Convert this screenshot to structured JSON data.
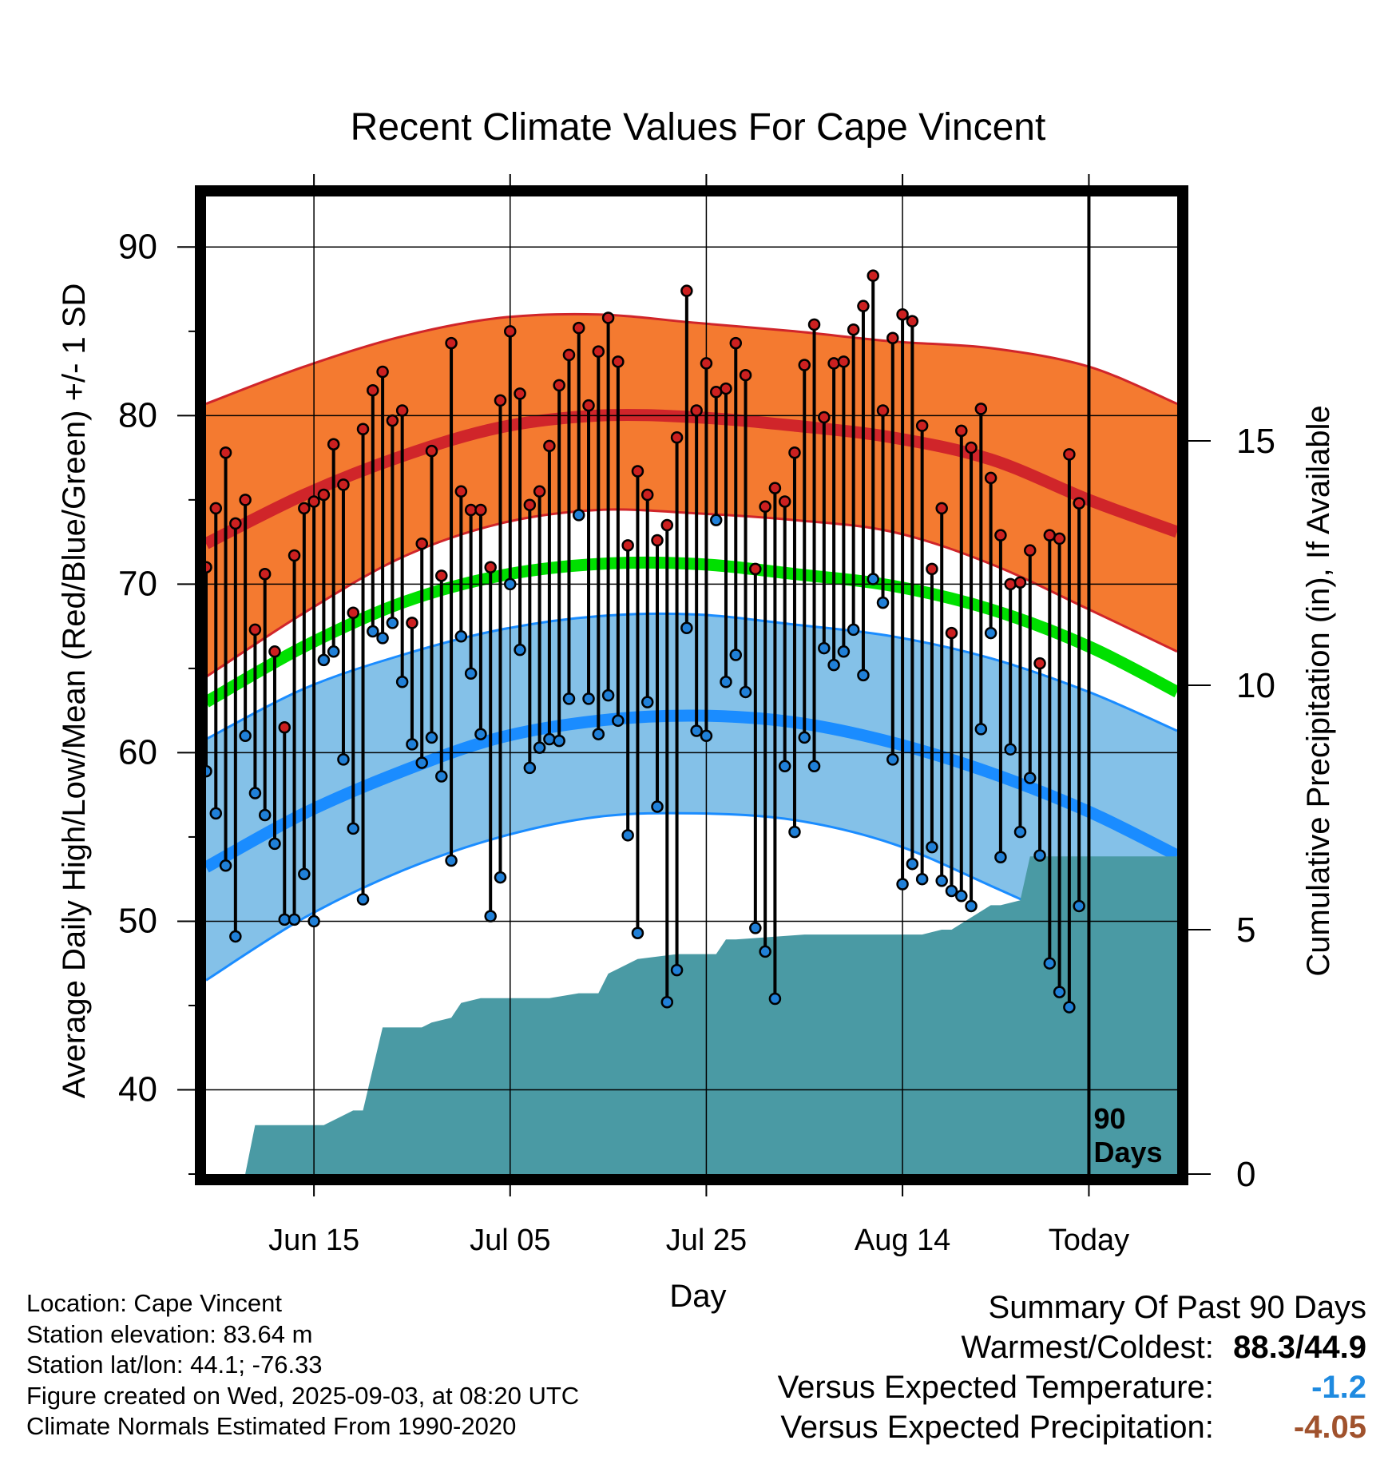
{
  "chart_data": {
    "type": "line",
    "title": "Recent Climate Values For Cape Vincent",
    "xlabel": "Day",
    "ylabel": "Average Daily High/Low/Mean (Red/Blue/Green) +/- 1 SD",
    "y2label": "Cumulative Precipitation (in), If Available",
    "ylim": [
      35,
      93
    ],
    "y_ticks": [
      40,
      50,
      60,
      70,
      80,
      90
    ],
    "y2lim": [
      0,
      20
    ],
    "y2_ticks": [
      0,
      5,
      10,
      15
    ],
    "x_range_days": [
      -90,
      9
    ],
    "x_ticks": [
      {
        "day": -79,
        "label": "Jun 15"
      },
      {
        "day": -59,
        "label": "Jul 05"
      },
      {
        "day": -39,
        "label": "Jul 25"
      },
      {
        "day": -19,
        "label": "Aug 14"
      },
      {
        "day": 0,
        "label": "Today"
      }
    ],
    "today_marker_label": [
      "90",
      "Days"
    ],
    "grid": true,
    "colors": {
      "high_sd_band": "#f47a30",
      "high_normal": "#d0252a",
      "low_sd_band": "#84c1e8",
      "low_normal": "#1a8cff",
      "mean_normal": "#00e000",
      "observed_high_marker": "#cc2020",
      "observed_low_marker": "#2080d8",
      "precip": "#4a9aa4"
    },
    "normal_days": [
      -90,
      -80,
      -70,
      -60,
      -50,
      -40,
      -30,
      -20,
      -10,
      0,
      9
    ],
    "normal_high": [
      72.4,
      75.3,
      77.6,
      79.3,
      80.0,
      79.9,
      79.4,
      78.7,
      77.4,
      75.0,
      73.1
    ],
    "normal_high_plus_sd": [
      80.7,
      82.9,
      84.7,
      85.8,
      86.0,
      85.5,
      85.0,
      84.4,
      84.0,
      82.9,
      80.7
    ],
    "normal_high_minus_sd": [
      64.5,
      68.3,
      71.6,
      73.6,
      74.4,
      74.2,
      73.8,
      73.1,
      71.2,
      68.5,
      66.0
    ],
    "normal_mean": [
      63.0,
      66.3,
      68.9,
      70.5,
      71.2,
      71.2,
      70.6,
      69.9,
      68.5,
      66.3,
      63.6
    ],
    "normal_low": [
      53.2,
      56.4,
      58.9,
      60.9,
      61.9,
      62.2,
      61.8,
      60.6,
      58.8,
      56.5,
      53.9
    ],
    "normal_low_plus_sd": [
      60.8,
      63.8,
      65.8,
      67.3,
      68.1,
      68.2,
      67.6,
      66.9,
      65.6,
      63.6,
      61.3
    ],
    "normal_low_minus_sd": [
      46.5,
      50.2,
      53.0,
      55.0,
      56.2,
      56.4,
      56.0,
      54.6,
      52.1,
      49.4,
      46.5
    ],
    "observed_high": [
      71.0,
      74.5,
      77.8,
      73.6,
      75.0,
      67.3,
      70.6,
      66.0,
      61.5,
      71.7,
      74.5,
      74.9,
      75.3,
      78.3,
      75.9,
      68.3,
      79.2,
      81.5,
      82.6,
      79.7,
      80.3,
      67.7,
      72.4,
      77.9,
      70.5,
      84.3,
      75.5,
      74.4,
      74.4,
      71.0,
      80.9,
      85.0,
      81.3,
      74.7,
      75.5,
      78.2,
      81.8,
      83.6,
      85.2,
      80.6,
      83.8,
      85.8,
      83.2,
      72.3,
      76.7,
      75.3,
      72.6,
      73.5,
      78.7,
      87.4,
      80.3,
      83.1,
      81.4,
      81.6,
      84.3,
      82.4,
      70.9,
      74.6,
      75.7,
      74.9,
      77.8,
      83.0,
      85.4,
      79.9,
      83.1,
      83.2,
      85.1,
      86.5,
      88.3,
      80.3,
      84.6,
      86.0,
      85.6,
      79.4,
      70.9,
      74.5,
      67.1,
      79.1,
      78.1,
      80.4,
      76.3,
      72.9,
      70.0,
      70.1,
      72.0,
      65.3,
      72.9,
      72.7,
      77.7,
      74.8
    ],
    "observed_low": [
      58.9,
      56.4,
      53.3,
      49.1,
      61.0,
      57.6,
      56.3,
      54.6,
      50.1,
      50.1,
      52.8,
      50.0,
      65.5,
      66.0,
      59.6,
      55.5,
      51.3,
      67.2,
      66.8,
      67.7,
      64.2,
      60.5,
      59.4,
      60.9,
      58.6,
      53.6,
      66.9,
      64.7,
      61.1,
      50.3,
      52.6,
      70.0,
      66.1,
      59.1,
      60.3,
      60.8,
      60.7,
      63.2,
      74.1,
      63.2,
      61.1,
      63.4,
      61.9,
      55.1,
      49.3,
      63.0,
      56.8,
      45.2,
      47.1,
      67.4,
      61.3,
      61.0,
      73.8,
      64.2,
      65.8,
      63.6,
      49.6,
      48.2,
      45.4,
      59.2,
      55.3,
      60.9,
      59.2,
      66.2,
      65.2,
      66.0,
      67.3,
      64.6,
      70.3,
      68.9,
      59.6,
      52.2,
      53.4,
      52.5,
      54.4,
      52.4,
      51.8,
      51.5,
      50.9,
      61.4,
      67.1,
      53.8,
      60.2,
      55.3,
      58.5,
      53.9,
      47.5,
      45.8,
      44.9,
      50.9
    ],
    "cum_precip": {
      "days": [
        -90,
        -86,
        -85,
        -78,
        -75,
        -74,
        -72,
        -71,
        -68,
        -67,
        -65,
        -64,
        -62,
        -61,
        -58,
        -55,
        -52,
        -50,
        -49,
        -48,
        -46,
        -42,
        -38,
        -37,
        -36,
        -29,
        -28,
        -20,
        -17,
        -15,
        -14,
        -10,
        -9,
        -7,
        -6,
        0,
        9
      ],
      "values": [
        0,
        0,
        1.0,
        1.0,
        1.3,
        1.3,
        3.0,
        3.0,
        3.0,
        3.1,
        3.2,
        3.5,
        3.6,
        3.6,
        3.6,
        3.6,
        3.7,
        3.7,
        4.1,
        4.2,
        4.4,
        4.5,
        4.5,
        4.8,
        4.8,
        4.9,
        4.9,
        4.9,
        4.9,
        5.0,
        5.0,
        5.5,
        5.5,
        5.6,
        6.5,
        6.5,
        6.5
      ]
    }
  },
  "info": {
    "location": "Location: Cape Vincent",
    "elevation": "Station elevation: 83.64 m",
    "latlon": "Station lat/lon: 44.1; -76.33",
    "created": "Figure created on Wed, 2025-09-03, at 08:20 UTC",
    "normals": "Climate Normals Estimated From 1990-2020"
  },
  "summary": {
    "heading": "Summary Of Past 90 Days",
    "warm_cold_label": "Warmest/Coldest:",
    "warm_cold_value": "88.3/44.9",
    "temp_label": "Versus Expected Temperature:",
    "temp_value": "-1.2",
    "temp_color": "#1e8ae0",
    "precip_label": "Versus Expected Precipitation:",
    "precip_value": "-4.05",
    "precip_color": "#a0522d"
  }
}
